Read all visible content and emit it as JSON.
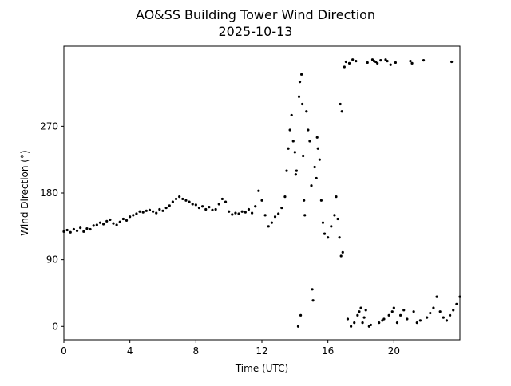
{
  "chart_data": {
    "type": "scatter",
    "title": "AO&SS Building Tower Wind Direction",
    "subtitle": "2025-10-13",
    "x_label": "Time (UTC)",
    "y_label": "Wind Direction (°)",
    "xlim": [
      0,
      24
    ],
    "ylim": [
      -18,
      378
    ],
    "xticks": [
      0,
      4,
      8,
      12,
      16,
      20
    ],
    "yticks": [
      0,
      90,
      180,
      270
    ],
    "grid": false,
    "color": "#000000",
    "x": [
      0.0,
      0.2,
      0.4,
      0.6,
      0.8,
      1.0,
      1.2,
      1.4,
      1.6,
      1.8,
      2.0,
      2.2,
      2.4,
      2.6,
      2.8,
      3.0,
      3.2,
      3.4,
      3.6,
      3.8,
      4.0,
      4.2,
      4.4,
      4.6,
      4.8,
      5.0,
      5.2,
      5.4,
      5.6,
      5.8,
      6.0,
      6.2,
      6.4,
      6.6,
      6.8,
      7.0,
      7.2,
      7.4,
      7.6,
      7.8,
      8.0,
      8.2,
      8.4,
      8.6,
      8.8,
      9.0,
      9.2,
      9.4,
      9.6,
      9.8,
      10.0,
      10.2,
      10.4,
      10.6,
      10.8,
      11.0,
      11.2,
      11.4,
      11.6,
      11.8,
      12.0,
      12.2,
      12.4,
      12.6,
      12.8,
      13.0,
      13.2,
      13.4,
      13.5,
      13.6,
      13.7,
      13.8,
      13.9,
      14.0,
      14.05,
      14.1,
      14.2,
      14.25,
      14.3,
      14.35,
      14.4,
      14.45,
      14.5,
      14.55,
      14.6,
      14.7,
      14.8,
      14.9,
      15.0,
      15.05,
      15.1,
      15.2,
      15.3,
      15.35,
      15.4,
      15.5,
      15.6,
      15.7,
      15.8,
      16.0,
      16.2,
      16.4,
      16.5,
      16.6,
      16.7,
      16.8,
      16.9,
      16.75,
      16.85,
      17.0,
      17.1,
      17.2,
      17.3,
      17.4,
      17.5,
      17.6,
      17.7,
      17.8,
      17.9,
      18.0,
      18.1,
      18.2,
      18.3,
      18.4,
      18.5,
      18.6,
      18.7,
      18.8,
      18.9,
      19.0,
      19.1,
      19.2,
      19.3,
      19.4,
      19.5,
      19.6,
      19.7,
      19.8,
      19.9,
      20.0,
      20.1,
      20.2,
      20.4,
      20.6,
      20.8,
      21.0,
      21.1,
      21.2,
      21.4,
      21.6,
      21.8,
      22.0,
      22.2,
      22.4,
      22.6,
      22.8,
      23.0,
      23.2,
      23.4,
      23.5,
      23.6,
      23.8,
      24.0
    ],
    "y": [
      128,
      130,
      127,
      131,
      129,
      133,
      128,
      132,
      131,
      136,
      137,
      140,
      138,
      142,
      144,
      139,
      137,
      141,
      145,
      143,
      148,
      150,
      152,
      155,
      154,
      156,
      157,
      155,
      153,
      158,
      156,
      160,
      163,
      168,
      172,
      175,
      172,
      170,
      168,
      165,
      164,
      160,
      162,
      158,
      161,
      157,
      158,
      165,
      172,
      168,
      155,
      151,
      153,
      152,
      155,
      154,
      158,
      153,
      162,
      183,
      170,
      150,
      135,
      140,
      148,
      152,
      160,
      175,
      210,
      240,
      265,
      285,
      250,
      235,
      205,
      210,
      0,
      310,
      330,
      15,
      340,
      300,
      230,
      170,
      150,
      290,
      265,
      250,
      190,
      50,
      35,
      215,
      200,
      255,
      240,
      225,
      170,
      140,
      125,
      120,
      135,
      150,
      175,
      145,
      120,
      95,
      100,
      300,
      290,
      350,
      357,
      10,
      355,
      0,
      360,
      5,
      358,
      15,
      20,
      25,
      5,
      12,
      22,
      356,
      0,
      2,
      360,
      358,
      357,
      355,
      5,
      359,
      8,
      10,
      360,
      358,
      15,
      353,
      20,
      25,
      356,
      5,
      15,
      22,
      10,
      358,
      355,
      20,
      5,
      8,
      359,
      12,
      18,
      25,
      40,
      20,
      12,
      8,
      15,
      357,
      22,
      30,
      40
    ]
  }
}
